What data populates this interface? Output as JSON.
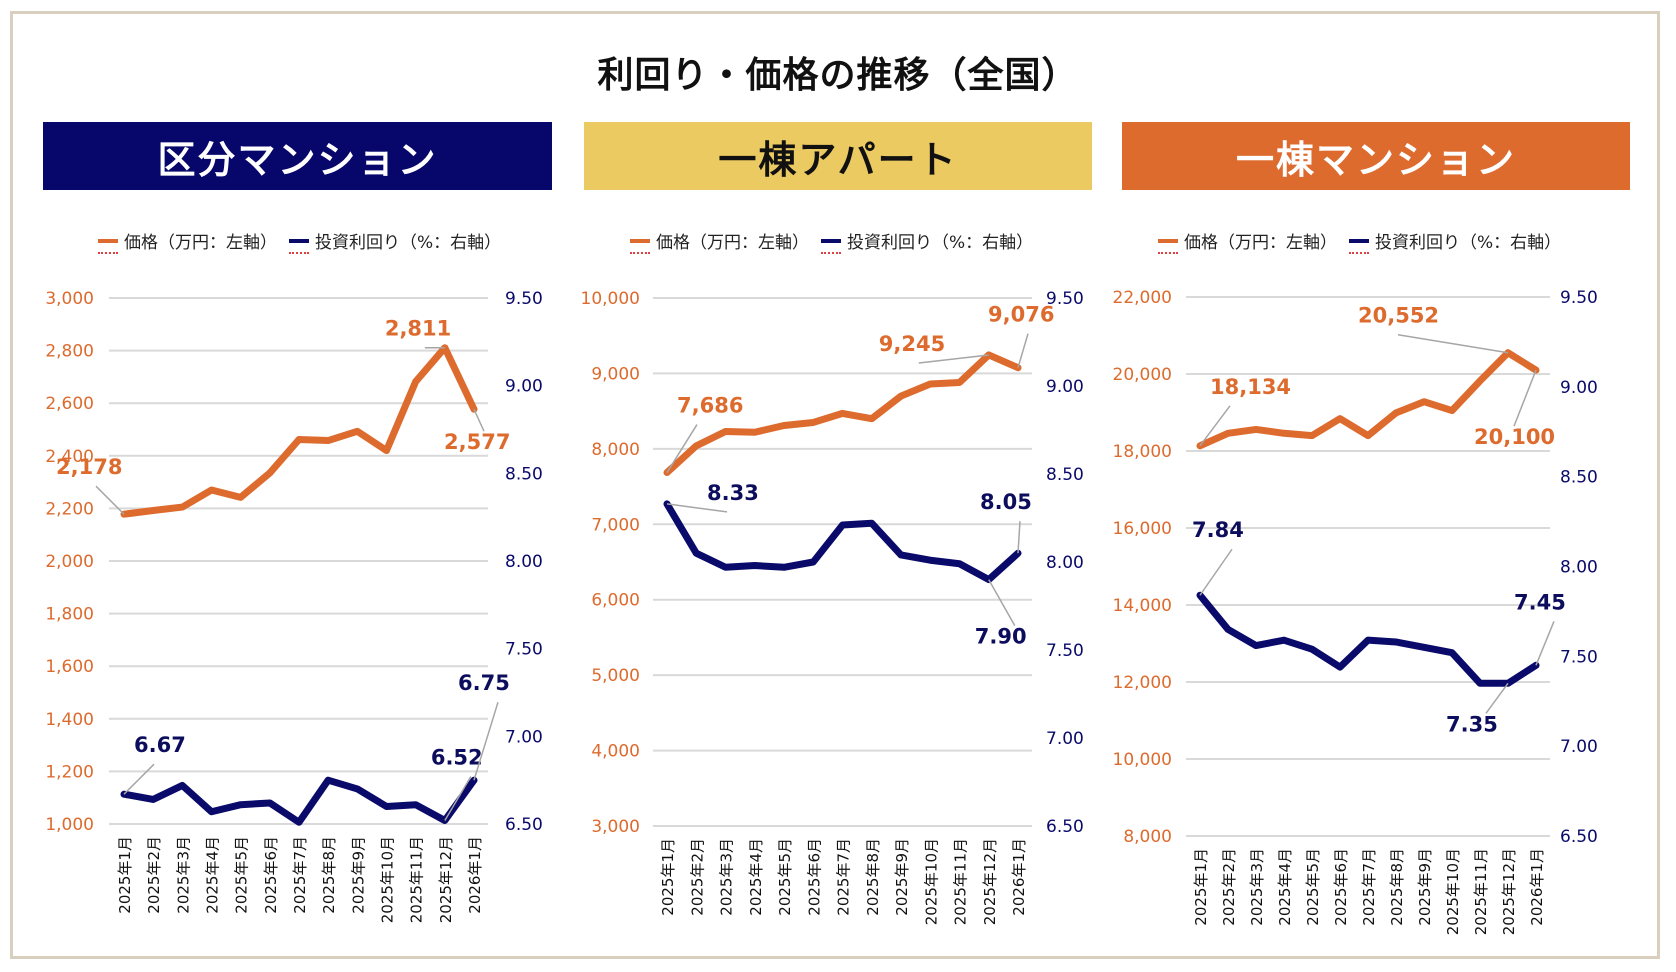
{
  "page": {
    "title": "利回り・価格の推移（全国）"
  },
  "legend": {
    "price": "価格（万円：左軸）",
    "yield": "投資利回り（%：右軸）"
  },
  "colors": {
    "price": "#dd6b2e",
    "yield": "#0a0a6b",
    "grid": "#d9d9d9",
    "frame": "#d8cfbf"
  },
  "panels": [
    {
      "title": "区分マンション",
      "bg": "#06066b",
      "fg": "#ffffff"
    },
    {
      "title": "一棟アパート",
      "bg": "#ebca62",
      "fg": "#111111"
    },
    {
      "title": "一棟マンション",
      "bg": "#dd6b2e",
      "fg": "#ffffff"
    }
  ],
  "chart_data": [
    {
      "type": "line",
      "title": "区分マンション",
      "categories": [
        "2025年1月",
        "2025年2月",
        "2025年3月",
        "2025年4月",
        "2025年5月",
        "2025年6月",
        "2025年7月",
        "2025年8月",
        "2025年9月",
        "2025年10月",
        "2025年11月",
        "2025年12月",
        "2026年1月"
      ],
      "series": [
        {
          "name": "価格（万円：左軸）",
          "axis": "left",
          "values": [
            2178,
            2192,
            2205,
            2270,
            2242,
            2335,
            2462,
            2458,
            2493,
            2420,
            2682,
            2811,
            2577
          ],
          "labels": [
            {
              "index": 0,
              "text": "2,178"
            },
            {
              "index": 11,
              "text": "2,811"
            },
            {
              "index": 12,
              "text": "2,577"
            }
          ]
        },
        {
          "name": "投資利回り（%：右軸）",
          "axis": "right",
          "values": [
            6.67,
            6.64,
            6.72,
            6.57,
            6.61,
            6.62,
            6.51,
            6.75,
            6.7,
            6.6,
            6.61,
            6.52,
            6.75
          ],
          "labels": [
            {
              "index": 0,
              "text": "6.67"
            },
            {
              "index": 11,
              "text": "6.52"
            },
            {
              "index": 12,
              "text": "6.75"
            }
          ]
        }
      ],
      "y_left": {
        "min": 1000,
        "max": 3000,
        "step": 200,
        "ticks": [
          "1,000",
          "1,200",
          "1,400",
          "1,600",
          "1,800",
          "2,000",
          "2,200",
          "2,400",
          "2,600",
          "2,800",
          "3,000"
        ]
      },
      "y_right": {
        "min": 6.5,
        "max": 9.5,
        "ticks": [
          "6.50",
          "7.00",
          "7.50",
          "8.00",
          "8.50",
          "9.00",
          "9.50"
        ]
      },
      "grid": true,
      "legend": "top-center"
    },
    {
      "type": "line",
      "title": "一棟アパート",
      "categories": [
        "2025年1月",
        "2025年2月",
        "2025年3月",
        "2025年4月",
        "2025年5月",
        "2025年6月",
        "2025年7月",
        "2025年8月",
        "2025年9月",
        "2025年10月",
        "2025年11月",
        "2025年12月",
        "2026年1月"
      ],
      "series": [
        {
          "name": "価格（万円：左軸）",
          "axis": "left",
          "values": [
            7686,
            8040,
            8230,
            8220,
            8310,
            8350,
            8470,
            8400,
            8700,
            8860,
            8880,
            9245,
            9076
          ],
          "labels": [
            {
              "index": 0,
              "text": "7,686"
            },
            {
              "index": 11,
              "text": "9,245"
            },
            {
              "index": 12,
              "text": "9,076"
            }
          ]
        },
        {
          "name": "投資利回り（%：右軸）",
          "axis": "right",
          "values": [
            8.33,
            8.05,
            7.97,
            7.98,
            7.97,
            8.0,
            8.21,
            8.22,
            8.04,
            8.01,
            7.99,
            7.9,
            8.05
          ],
          "labels": [
            {
              "index": 0,
              "text": "8.33"
            },
            {
              "index": 11,
              "text": "7.90"
            },
            {
              "index": 12,
              "text": "8.05"
            }
          ]
        }
      ],
      "y_left": {
        "min": 3000,
        "max": 10000,
        "step": 1000,
        "ticks": [
          "3,000",
          "4,000",
          "5,000",
          "6,000",
          "7,000",
          "8,000",
          "9,000",
          "10,000"
        ]
      },
      "y_right": {
        "min": 6.5,
        "max": 9.5,
        "ticks": [
          "6.50",
          "7.00",
          "7.50",
          "8.00",
          "8.50",
          "9.00",
          "9.50"
        ]
      },
      "grid": true,
      "legend": "top-center"
    },
    {
      "type": "line",
      "title": "一棟マンション",
      "categories": [
        "2025年1月",
        "2025年2月",
        "2025年3月",
        "2025年4月",
        "2025年5月",
        "2025年6月",
        "2025年7月",
        "2025年8月",
        "2025年9月",
        "2025年10月",
        "2025年11月",
        "2025年12月",
        "2026年1月"
      ],
      "series": [
        {
          "name": "価格（万円：左軸）",
          "axis": "left",
          "values": [
            18134,
            18460,
            18560,
            18460,
            18400,
            18840,
            18400,
            18990,
            19280,
            19050,
            19820,
            20552,
            20100
          ],
          "labels": [
            {
              "index": 0,
              "text": "18,134"
            },
            {
              "index": 11,
              "text": "20,552"
            },
            {
              "index": 12,
              "text": "20,100"
            }
          ]
        },
        {
          "name": "投資利回り（%：右軸）",
          "axis": "right",
          "values": [
            7.84,
            7.65,
            7.56,
            7.59,
            7.54,
            7.44,
            7.59,
            7.58,
            7.55,
            7.52,
            7.35,
            7.35,
            7.45
          ],
          "labels": [
            {
              "index": 0,
              "text": "7.84"
            },
            {
              "index": 11,
              "text": "7.35"
            },
            {
              "index": 12,
              "text": "7.45"
            }
          ]
        }
      ],
      "y_left": {
        "min": 8000,
        "max": 22000,
        "step": 2000,
        "ticks": [
          "8,000",
          "10,000",
          "12,000",
          "14,000",
          "16,000",
          "18,000",
          "20,000",
          "22,000"
        ]
      },
      "y_right": {
        "min": 6.5,
        "max": 9.5,
        "ticks": [
          "6.50",
          "7.00",
          "7.50",
          "8.00",
          "8.50",
          "9.00",
          "9.50"
        ]
      },
      "grid": true,
      "legend": "top-center"
    }
  ]
}
